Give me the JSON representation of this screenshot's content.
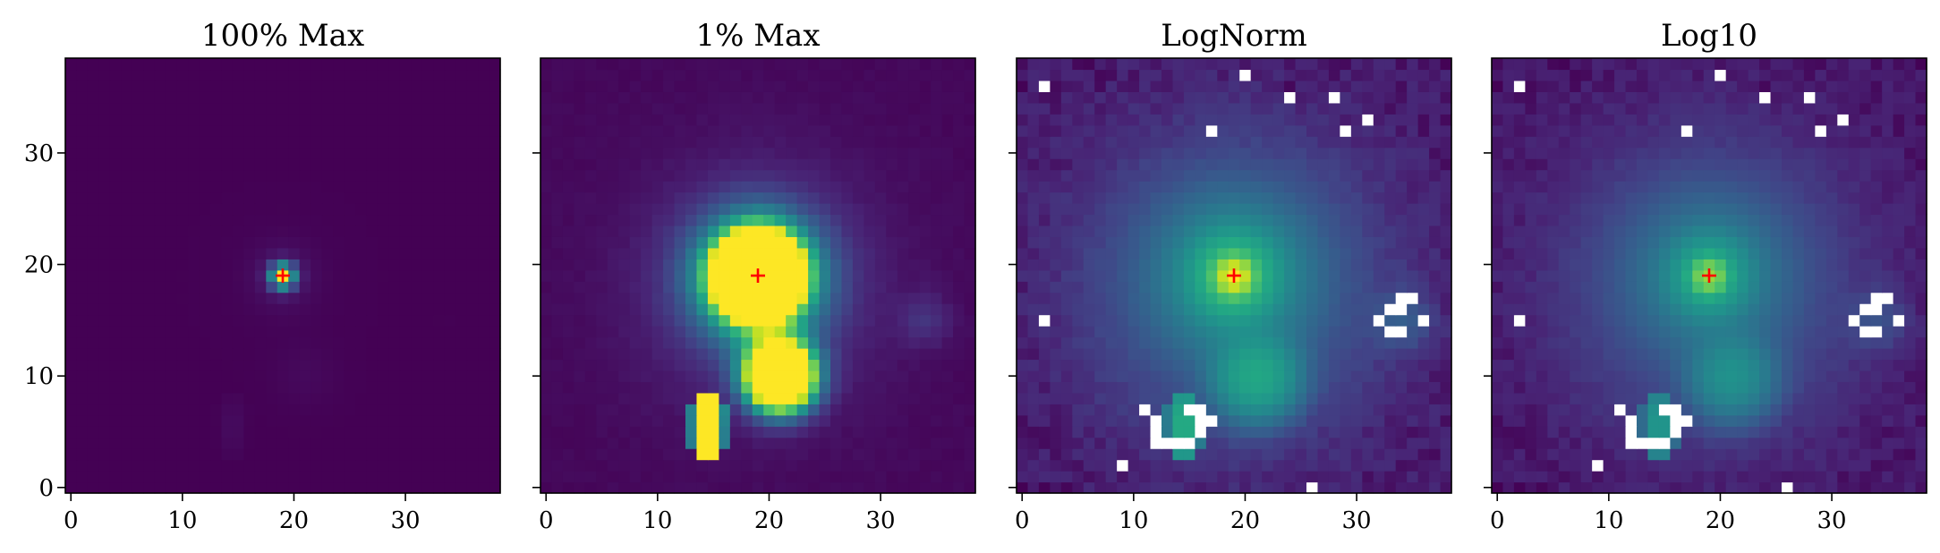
{
  "chart_data": [
    {
      "type": "heatmap",
      "title": "100% Max",
      "norm": "linear",
      "clip_fraction_of_max": 1.0,
      "colormap": "viridis",
      "grid_size": [
        39,
        39
      ],
      "xlim": [
        -0.5,
        38.5
      ],
      "ylim": [
        -0.5,
        38.5
      ],
      "xticks": [
        "0",
        "10",
        "20",
        "30"
      ],
      "yticks": [
        "0",
        "10",
        "20",
        "30"
      ],
      "show_yticklabels": true,
      "marker": {
        "x": 19,
        "y": 19,
        "symbol": "+",
        "color": "#ff0000"
      }
    },
    {
      "type": "heatmap",
      "title": "1% Max",
      "norm": "linear",
      "clip_fraction_of_max": 0.01,
      "colormap": "viridis",
      "grid_size": [
        39,
        39
      ],
      "xlim": [
        -0.5,
        38.5
      ],
      "ylim": [
        -0.5,
        38.5
      ],
      "xticks": [
        "0",
        "10",
        "20",
        "30"
      ],
      "yticks": [
        "0",
        "10",
        "20",
        "30"
      ],
      "show_yticklabels": false,
      "marker": {
        "x": 19,
        "y": 19,
        "symbol": "+",
        "color": "#ff0000"
      }
    },
    {
      "type": "heatmap",
      "title": "LogNorm",
      "norm": "log",
      "colormap": "viridis",
      "grid_size": [
        39,
        39
      ],
      "xlim": [
        -0.5,
        38.5
      ],
      "ylim": [
        -0.5,
        38.5
      ],
      "xticks": [
        "0",
        "10",
        "20",
        "30"
      ],
      "yticks": [
        "0",
        "10",
        "20",
        "30"
      ],
      "show_yticklabels": false,
      "marker": {
        "x": 19,
        "y": 19,
        "symbol": "+",
        "color": "#ff0000"
      }
    },
    {
      "type": "heatmap",
      "title": "Log10",
      "norm": "log10",
      "colormap": "viridis",
      "grid_size": [
        39,
        39
      ],
      "xlim": [
        -0.5,
        38.5
      ],
      "ylim": [
        -0.5,
        38.5
      ],
      "xticks": [
        "0",
        "10",
        "20",
        "30"
      ],
      "yticks": [
        "0",
        "10",
        "20",
        "30"
      ],
      "show_yticklabels": false,
      "marker": {
        "x": 19,
        "y": 19,
        "symbol": "+",
        "color": "#ff0000"
      }
    }
  ],
  "colors": {
    "background": "#ffffff",
    "marker": "#ff0000",
    "masked": "#ffffff",
    "viridis_low": "#440154",
    "viridis_high": "#fde725"
  }
}
